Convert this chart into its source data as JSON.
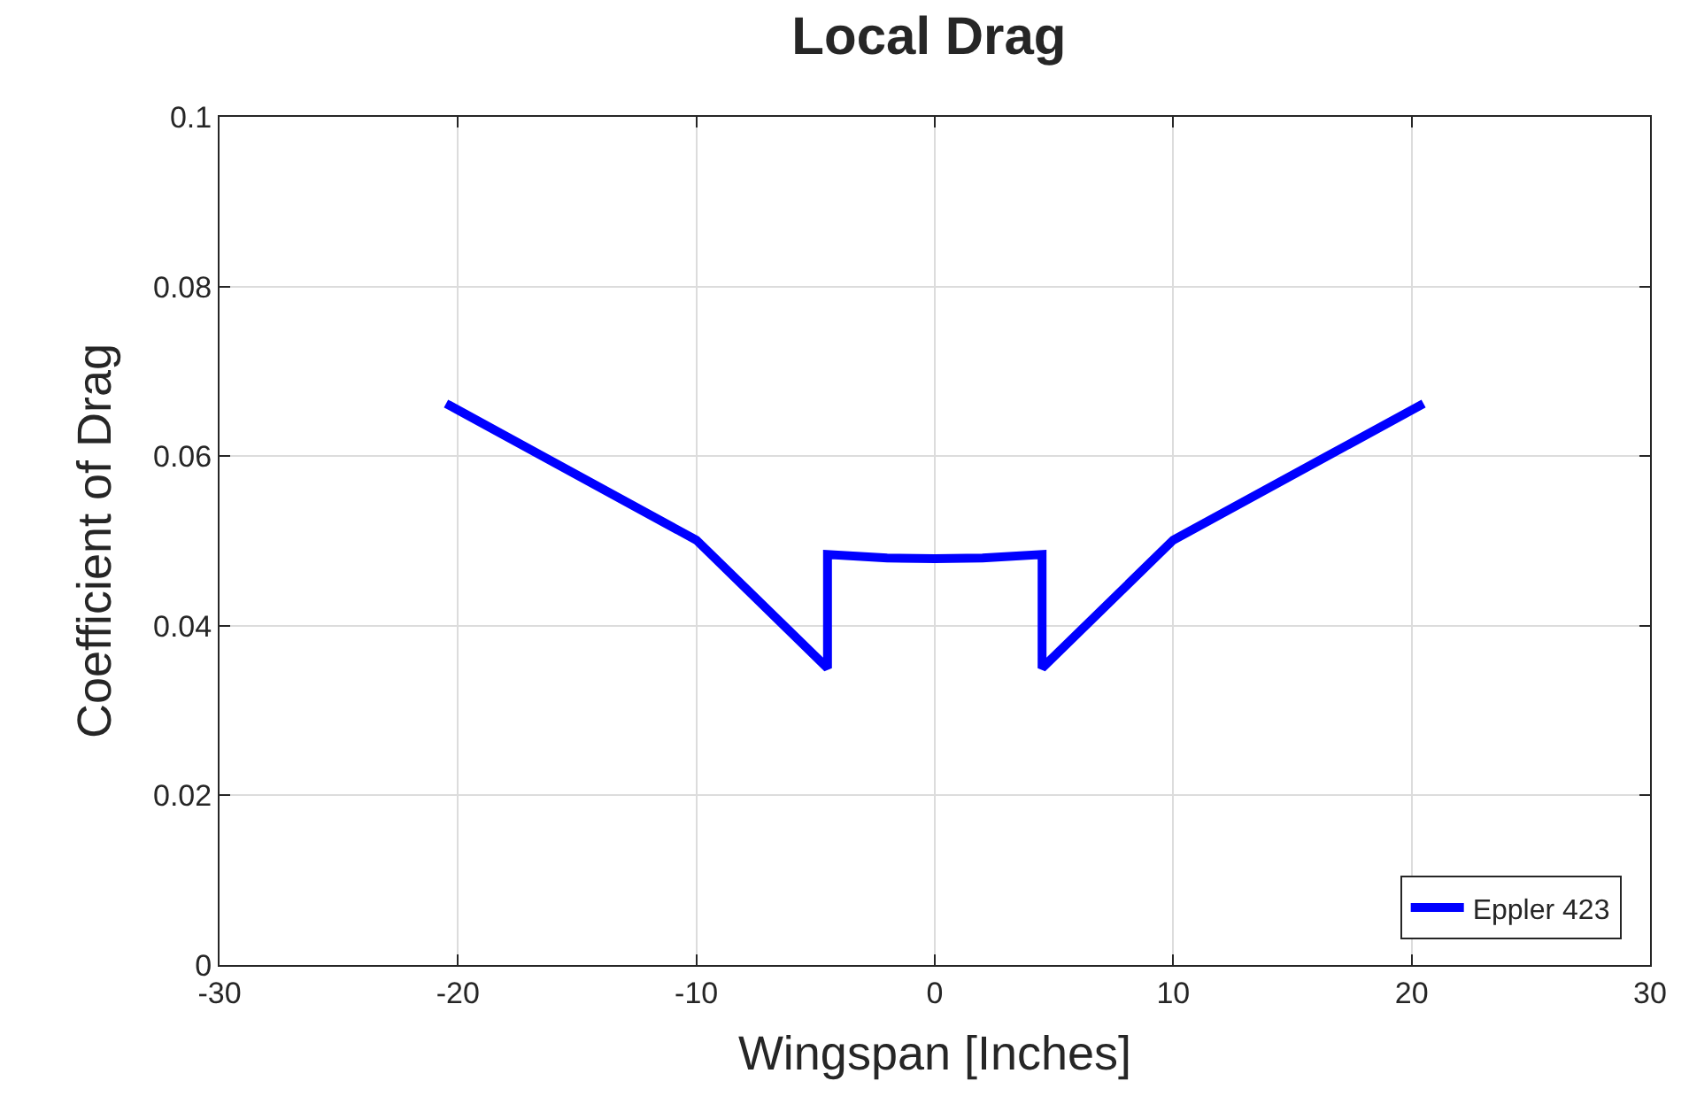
{
  "chart_data": {
    "type": "line",
    "title": "Local Drag",
    "xlabel": "Wingspan [Inches]",
    "ylabel": "Coefficient of Drag",
    "x": [
      -20.5,
      -10,
      -4.5,
      -4.5,
      -2,
      0,
      2,
      4.5,
      4.5,
      10,
      20.5
    ],
    "series": [
      {
        "name": "Eppler 423",
        "color": "#0000ff",
        "values": [
          0.0662,
          0.0501,
          0.035,
          0.0484,
          0.048,
          0.0479,
          0.048,
          0.0484,
          0.035,
          0.0501,
          0.0662
        ]
      }
    ],
    "xlim": [
      -30,
      30
    ],
    "xticks": [
      -30,
      -20,
      -10,
      0,
      10,
      20,
      30
    ],
    "ylim": [
      0,
      0.1
    ],
    "yticks": [
      0,
      0.02,
      0.04,
      0.06,
      0.08,
      0.1
    ],
    "grid": true,
    "legend": "bottom right",
    "marker": "none",
    "line_style": "solid"
  }
}
